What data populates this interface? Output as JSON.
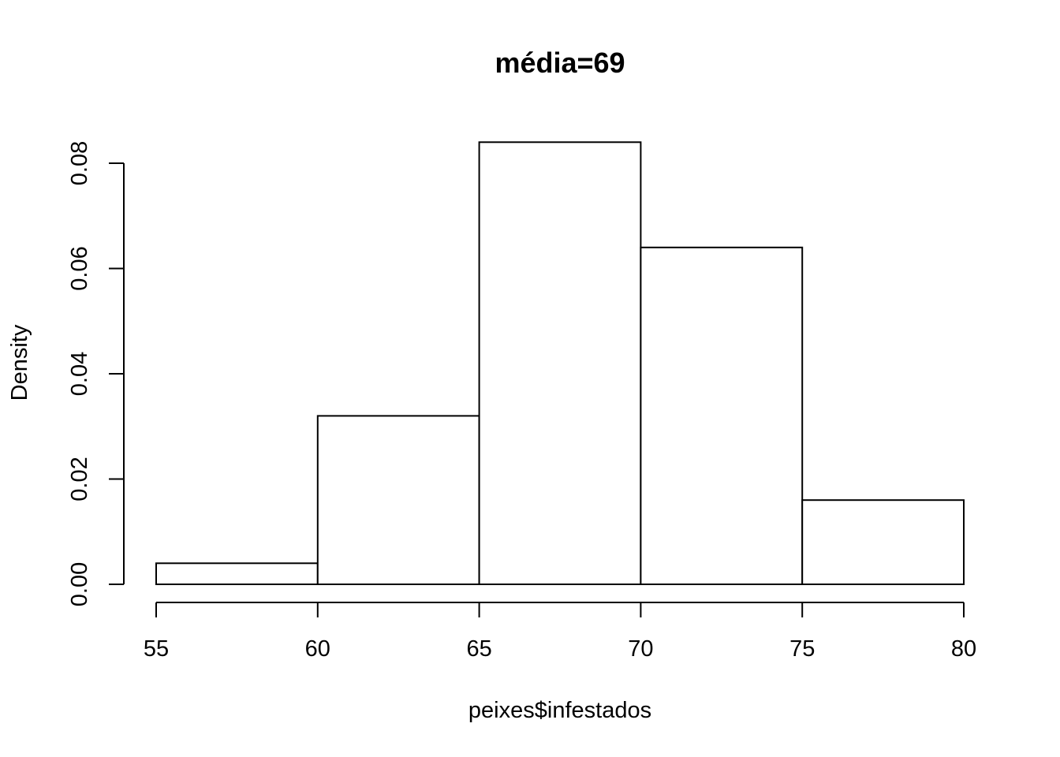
{
  "chart_data": {
    "type": "bar",
    "title": "média=69",
    "xlabel": "peixes$infestados",
    "ylabel": "Density",
    "bins": [
      {
        "x0": 55,
        "x1": 60,
        "density": 0.004
      },
      {
        "x0": 60,
        "x1": 65,
        "density": 0.032
      },
      {
        "x0": 65,
        "x1": 70,
        "density": 0.084
      },
      {
        "x0": 70,
        "x1": 75,
        "density": 0.064
      },
      {
        "x0": 75,
        "x1": 80,
        "density": 0.016
      }
    ],
    "xlim": [
      55,
      80
    ],
    "ylim": [
      0,
      0.08
    ],
    "x_ticks": [
      55,
      60,
      65,
      70,
      75,
      80
    ],
    "x_tick_labels": [
      "55",
      "60",
      "65",
      "70",
      "75",
      "80"
    ],
    "y_ticks": [
      0,
      0.02,
      0.04,
      0.06,
      0.08
    ],
    "y_tick_labels": [
      "0.00",
      "0.02",
      "0.04",
      "0.06",
      "0.08"
    ],
    "grid": false,
    "bar_fill": "#ffffff",
    "bar_stroke": "#000000"
  }
}
